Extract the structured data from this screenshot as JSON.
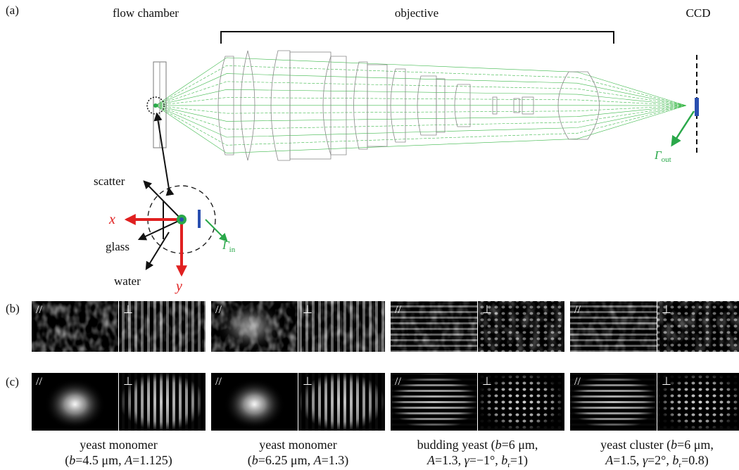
{
  "panel_labels": [
    "(a)",
    "(b)",
    "(c)"
  ],
  "components": {
    "flow_chamber": "flow chamber",
    "objective": "objective",
    "ccd": "CCD"
  },
  "inset": {
    "scatter": "scatter",
    "glass": "glass",
    "water": "water",
    "x_axis": "x",
    "y_axis": "y",
    "gamma_in": {
      "symbol": "Γ",
      "subscript": "in"
    }
  },
  "gamma_out": {
    "symbol": "Γ",
    "subscript": "out"
  },
  "polarization": {
    "parallel": "//",
    "perpendicular": "⊥"
  },
  "cases": [
    {
      "lines": [
        [
          {
            "t": "yeast monomer"
          }
        ],
        [
          {
            "t": "("
          },
          {
            "i": "b"
          },
          {
            "t": "=4.5 μm, "
          },
          {
            "i": "A"
          },
          {
            "t": "=1.125)"
          }
        ]
      ]
    },
    {
      "lines": [
        [
          {
            "t": "yeast monomer"
          }
        ],
        [
          {
            "t": "("
          },
          {
            "i": "b"
          },
          {
            "t": "=6.25 μm, "
          },
          {
            "i": "A"
          },
          {
            "t": "=1.3)"
          }
        ]
      ]
    },
    {
      "lines": [
        [
          {
            "t": "budding yeast ("
          },
          {
            "i": "b"
          },
          {
            "t": "=6 μm,"
          }
        ],
        [
          {
            "i": "A"
          },
          {
            "t": "=1.3, "
          },
          {
            "i": "γ"
          },
          {
            "t": "=−1°, "
          },
          {
            "i": "b"
          },
          {
            "sub": "r"
          },
          {
            "t": "=1)"
          }
        ]
      ]
    },
    {
      "lines": [
        [
          {
            "t": "yeast cluster ("
          },
          {
            "i": "b"
          },
          {
            "t": "=6 μm,"
          }
        ],
        [
          {
            "i": "A"
          },
          {
            "t": "=1.5, "
          },
          {
            "i": "γ"
          },
          {
            "t": "=2°, "
          },
          {
            "i": "b"
          },
          {
            "sub": "r"
          },
          {
            "t": "=0.8)"
          }
        ]
      ]
    }
  ]
}
